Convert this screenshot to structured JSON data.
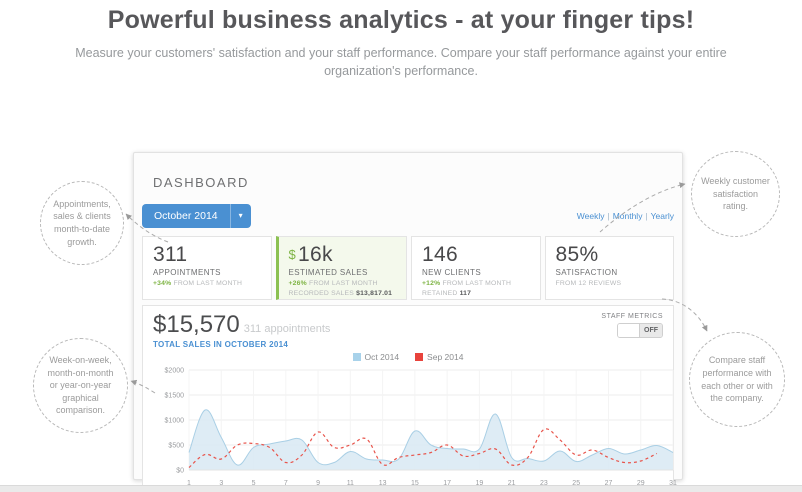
{
  "page": {
    "title": "Powerful business analytics - at your finger tips!",
    "subtitle": "Measure your customers' satisfaction and your staff performance. Compare your staff performance against your entire organization's performance."
  },
  "callouts": {
    "top_left": "Appointments, sales & clients month-to-date growth.",
    "bottom_left": "Week-on-week, month-on-month or year-on-year graphical comparison.",
    "top_right": "Weekly customer satisfaction rating.",
    "bottom_right": "Compare staff performance with each other or with the company."
  },
  "dashboard": {
    "heading": "DASHBOARD",
    "period_button": "October 2014",
    "caret": "▾",
    "view_links": [
      "Weekly",
      "Monthly",
      "Yearly"
    ],
    "stats": [
      {
        "value": "311",
        "label": "APPOINTMENTS",
        "delta": "+34%",
        "delta_note": "FROM LAST MONTH"
      },
      {
        "prefix": "$",
        "value": "16k",
        "label": "ESTIMATED SALES",
        "delta": "+26%",
        "delta_note": "FROM LAST MONTH",
        "extra_label": "RECORDED SALES",
        "extra_value": "$13,817.01"
      },
      {
        "value": "146",
        "label": "NEW CLIENTS",
        "delta": "+12%",
        "delta_note": "FROM LAST MONTH",
        "extra_label": "RETAINED",
        "extra_value": "117"
      },
      {
        "value": "85%",
        "label": "SATISFACTION",
        "note": "FROM 12 REVIEWS"
      }
    ],
    "chart_header": {
      "total": "$15,570",
      "total_note": "311 appointments",
      "subtitle": "TOTAL SALES IN OCTOBER 2014",
      "staff_metrics_label": "STAFF METRICS",
      "toggle_state": "OFF"
    }
  },
  "chart_data": {
    "type": "area",
    "x": [
      1,
      2,
      3,
      4,
      5,
      6,
      7,
      8,
      9,
      10,
      11,
      12,
      13,
      14,
      15,
      16,
      17,
      18,
      19,
      20,
      21,
      22,
      23,
      24,
      25,
      26,
      27,
      28,
      29,
      30,
      31
    ],
    "x_tick_labels": [
      "1",
      "3",
      "5",
      "7",
      "9",
      "11",
      "13",
      "15",
      "17",
      "19",
      "21",
      "23",
      "25",
      "27",
      "29",
      "31"
    ],
    "y_tick_labels": [
      "$2000",
      "$1500",
      "$1000",
      "$500",
      "$0"
    ],
    "y_ticks": [
      2000,
      1500,
      1000,
      500,
      0
    ],
    "ylim": [
      0,
      2000
    ],
    "grid": true,
    "legend_position": "top-center",
    "series": [
      {
        "name": "Oct 2014",
        "style": "area",
        "stroke": "#a9cfe5",
        "fill": "#daeaf4",
        "swatch": "#a8d2ea",
        "values": [
          350,
          1200,
          650,
          100,
          450,
          520,
          580,
          600,
          150,
          150,
          370,
          220,
          200,
          220,
          780,
          500,
          430,
          420,
          420,
          1120,
          250,
          230,
          180,
          380,
          170,
          300,
          430,
          320,
          400,
          490,
          350
        ]
      },
      {
        "name": "Sep 2014",
        "style": "dashed",
        "stroke": "#e8544b",
        "swatch": "#e8433c",
        "values": [
          50,
          310,
          220,
          500,
          530,
          450,
          150,
          300,
          760,
          450,
          500,
          620,
          110,
          250,
          300,
          350,
          500,
          280,
          330,
          420,
          100,
          250,
          810,
          600,
          300,
          400,
          250,
          150,
          180,
          330
        ]
      }
    ]
  },
  "colors": {
    "accent_blue": "#4a90d2",
    "green": "#7db343",
    "red": "#e8544b",
    "area_fill": "#daeaf4",
    "area_stroke": "#a9cfe5"
  }
}
